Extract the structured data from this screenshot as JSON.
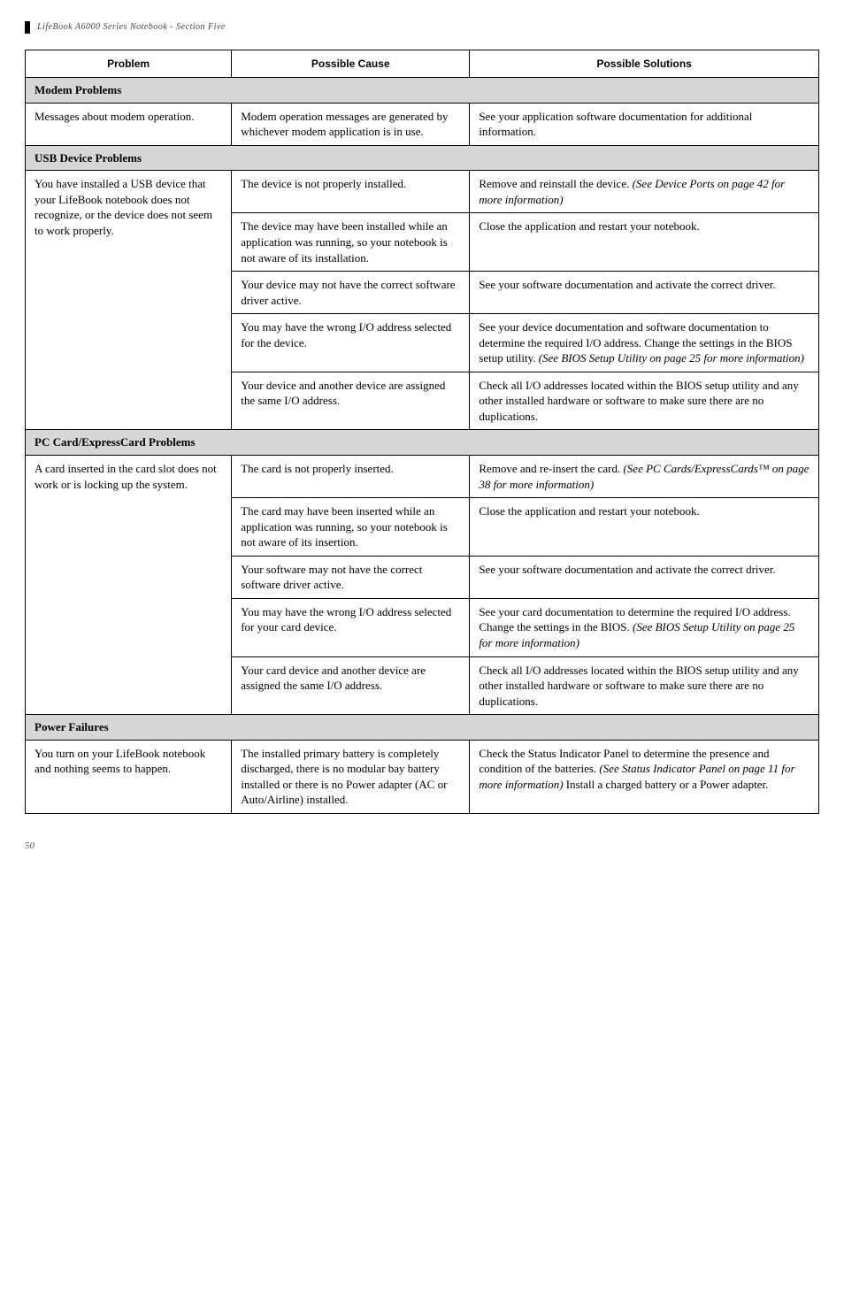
{
  "header": "LifeBook A6000 Series Notebook - Section Five",
  "page_number": "50",
  "table": {
    "headers": {
      "problem": "Problem",
      "cause": "Possible Cause",
      "solutions": "Possible Solutions"
    },
    "sections": [
      {
        "title": "Modem Problems",
        "rows": [
          {
            "problem": "Messages about modem operation.",
            "rowspan": 1,
            "causes": [
              {
                "cause": "Modem operation messages are generated by whichever modem application is in use.",
                "solution": "See your application software documentation for additional information."
              }
            ]
          }
        ]
      },
      {
        "title": "USB Device Problems",
        "rows": [
          {
            "problem": "You have installed a USB device that your LifeBook notebook does not recognize, or the device does not seem to work properly.",
            "rowspan": 5,
            "causes": [
              {
                "cause": "The device is not properly installed.",
                "solution_html": "Remove and reinstall the device. <em class='book'>(See Device Ports on page 42 for more information)</em>"
              },
              {
                "cause": "The device may have been installed while an application was running, so your notebook is not aware of its installation.",
                "solution": "Close the application and restart your notebook."
              },
              {
                "cause": "Your device may not have the correct software driver active.",
                "solution": "See your software documentation and activate the correct driver."
              },
              {
                "cause": "You may have the wrong I/O address selected for the device.",
                "solution_html": "See your device documentation and software documentation to determine the required I/O address. Change the settings in the BIOS setup utility. <em class='book'>(See BIOS Setup Utility on page 25 for more information)</em>"
              },
              {
                "cause": "Your device and another device are assigned the same I/O address.",
                "solution": "Check all I/O addresses located within the BIOS setup utility and any other installed hardware or software to make sure there are no duplications."
              }
            ]
          }
        ]
      },
      {
        "title": "PC Card/ExpressCard Problems",
        "rows": [
          {
            "problem": "A card inserted in the card slot does not work or is locking up the system.",
            "rowspan": 5,
            "causes": [
              {
                "cause": "The card is not properly inserted.",
                "solution_html": "Remove and re-insert the card. <em class='book'>(See PC Cards/ExpressCards™ on page 38 for more information)</em>"
              },
              {
                "cause": "The card may have been inserted while an application was running, so your notebook is not aware of its insertion.",
                "solution": "Close the application and restart your notebook."
              },
              {
                "cause": "Your software may not have the correct software driver active.",
                "solution": "See your software documentation and activate the correct driver."
              },
              {
                "cause": "You may have the wrong I/O address selected for your card device.",
                "solution_html": "See your card documentation to determine the required I/O address. Change the settings in the BIOS. <em class='book'>(See BIOS Setup Utility on page 25 for more information)</em>"
              },
              {
                "cause": "Your card device and another device are assigned the same I/O address.",
                "solution": "Check all I/O addresses located within the BIOS setup utility and any other installed hardware or software to make sure there are no duplications."
              }
            ]
          }
        ]
      },
      {
        "title": "Power Failures",
        "rows": [
          {
            "problem": "You turn on your LifeBook notebook and nothing seems to happen.",
            "rowspan": 1,
            "causes": [
              {
                "cause": "The installed primary battery is completely discharged, there is no modular bay battery installed or there is no Power adapter (AC or Auto/Airline) installed.",
                "solution_html": "Check the Status Indicator Panel to determine the presence and condition of the batteries. <em class='book'>(See Status Indicator Panel on page 11 for more information)</em> Install a charged battery or a Power adapter."
              }
            ]
          }
        ]
      }
    ]
  }
}
